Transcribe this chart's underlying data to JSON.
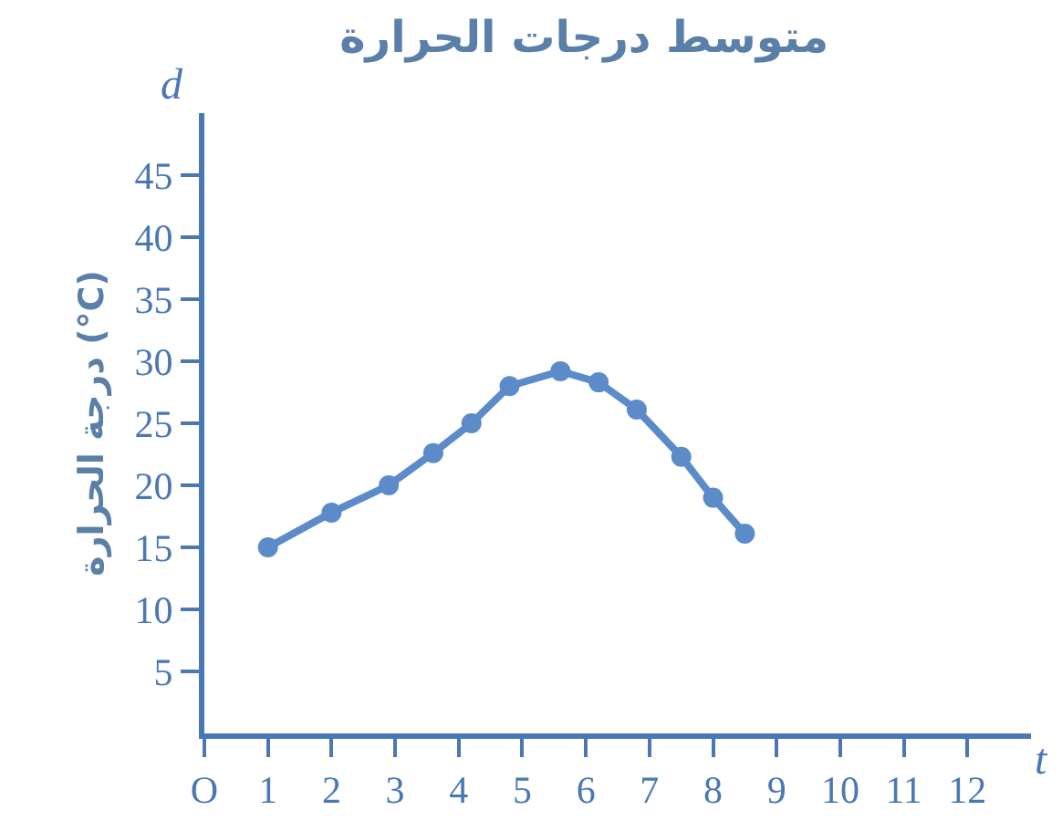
{
  "chart_data": {
    "type": "line",
    "title": "متوسط درجات الحرارة",
    "xlabel": "t",
    "ylabel": "درجة الحرارة (°C)",
    "annotations": [
      "d"
    ],
    "x": [
      1,
      2,
      2.9,
      3.6,
      4.2,
      4.8,
      5.6,
      6.2,
      6.8,
      7.5,
      8,
      8.5
    ],
    "series": [
      {
        "color": "#5b8bc9",
        "values": [
          15,
          17.8,
          20,
          22.6,
          25,
          28,
          29.2,
          28.3,
          26.1,
          22.3,
          19,
          16.1
        ]
      }
    ],
    "xlim": [
      0,
      13
    ],
    "ylim": [
      0,
      50
    ],
    "xticks": [
      {
        "value": 0,
        "label": "O"
      },
      1,
      2,
      3,
      4,
      5,
      6,
      7,
      8,
      9,
      10,
      11,
      12
    ],
    "yticks": [
      5,
      10,
      15,
      20,
      25,
      30,
      35,
      40,
      45
    ],
    "grid": false,
    "marker": "circle",
    "line_style": "solid"
  }
}
